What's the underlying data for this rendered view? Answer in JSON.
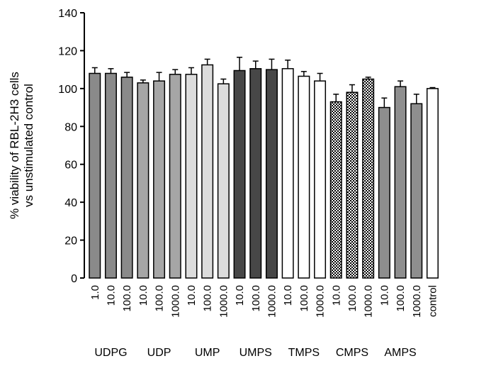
{
  "chart_data": {
    "type": "bar",
    "title": "",
    "ylabel": [
      "% viability of RBL-2H3 cells",
      "vs unstimulated control"
    ],
    "xlabel": "",
    "ylim": [
      0,
      140
    ],
    "yticks": [
      "0",
      "20",
      "40",
      "60",
      "80",
      "100",
      "120",
      "140"
    ],
    "grid": false,
    "legend": "none",
    "colors": {
      "UDPG": "#8a8a8a",
      "UDP": "#a6a6a6",
      "UMP": "#dcdcdc",
      "UMPS": "#474747",
      "TMPS": "#ffffff",
      "CMPS": "checker",
      "AMPS": "#8e8e8e",
      "control": "#ffffff"
    },
    "groups": [
      {
        "label": "UDPG",
        "bars": [
          {
            "x": "1.0",
            "value": 108,
            "error": 3
          },
          {
            "x": "10.0",
            "value": 108,
            "error": 2.5
          },
          {
            "x": "100.0",
            "value": 106,
            "error": 2.5
          }
        ]
      },
      {
        "label": "UDP",
        "bars": [
          {
            "x": "10.0",
            "value": 103,
            "error": 1.5
          },
          {
            "x": "100.0",
            "value": 104,
            "error": 4.5
          },
          {
            "x": "1000.0",
            "value": 107.5,
            "error": 2.5
          }
        ]
      },
      {
        "label": "UMP",
        "bars": [
          {
            "x": "10.0",
            "value": 107.5,
            "error": 3.5
          },
          {
            "x": "100.0",
            "value": 112.5,
            "error": 3
          },
          {
            "x": "1000.0",
            "value": 102.5,
            "error": 2.5
          }
        ]
      },
      {
        "label": "UMPS",
        "bars": [
          {
            "x": "10.0",
            "value": 109.5,
            "error": 7
          },
          {
            "x": "100.0",
            "value": 110.5,
            "error": 4
          },
          {
            "x": "1000.0",
            "value": 110,
            "error": 5.5
          }
        ]
      },
      {
        "label": "TMPS",
        "bars": [
          {
            "x": "10.0",
            "value": 110.5,
            "error": 4.5
          },
          {
            "x": "100.0",
            "value": 106.5,
            "error": 2.5
          },
          {
            "x": "1000.0",
            "value": 104,
            "error": 4
          }
        ]
      },
      {
        "label": "CMPS",
        "bars": [
          {
            "x": "10.0",
            "value": 93,
            "error": 4
          },
          {
            "x": "100.0",
            "value": 98,
            "error": 4
          },
          {
            "x": "1000.0",
            "value": 105,
            "error": 1
          }
        ]
      },
      {
        "label": "AMPS",
        "bars": [
          {
            "x": "10.0",
            "value": 90,
            "error": 5
          },
          {
            "x": "100.0",
            "value": 101,
            "error": 3
          },
          {
            "x": "1000.0",
            "value": 92,
            "error": 5
          }
        ]
      },
      {
        "label": "",
        "bars": [
          {
            "x": "control",
            "value": 100,
            "error": 0.5
          }
        ]
      }
    ]
  }
}
